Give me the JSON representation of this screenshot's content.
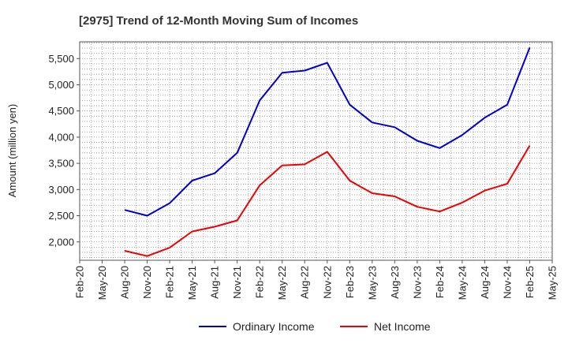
{
  "chart_data": {
    "type": "line",
    "title": "[2975]  Trend of 12-Month Moving Sum of Incomes",
    "xlabel": "",
    "ylabel": "Amount (million yen)",
    "categories": [
      "Feb-20",
      "May-20",
      "Aug-20",
      "Nov-20",
      "Feb-21",
      "May-21",
      "Aug-21",
      "Nov-21",
      "Feb-22",
      "May-22",
      "Aug-22",
      "Nov-22",
      "Feb-23",
      "May-23",
      "Aug-23",
      "Nov-23",
      "Feb-24",
      "May-24",
      "Aug-24",
      "Nov-24",
      "Feb-25",
      "May-25"
    ],
    "y_ticks": [
      2000,
      2500,
      3000,
      3500,
      4000,
      4500,
      5000,
      5500
    ],
    "y_tick_labels": [
      "2,000",
      "2,500",
      "3,000",
      "3,500",
      "4,000",
      "4,500",
      "5,000",
      "5,500"
    ],
    "ylim": [
      1650,
      5820
    ],
    "grid": true,
    "legend_position": "bottom",
    "series": [
      {
        "name": "Ordinary Income",
        "color": "#0000cc",
        "values": [
          null,
          null,
          2610,
          2500,
          2740,
          3170,
          3310,
          3700,
          4700,
          5230,
          5270,
          5420,
          4620,
          4280,
          4190,
          3930,
          3790,
          4040,
          4370,
          4620,
          5710,
          null
        ]
      },
      {
        "name": "Net Income",
        "color": "#ee0000",
        "values": [
          null,
          null,
          1830,
          1730,
          1890,
          2200,
          2290,
          2410,
          3080,
          3460,
          3480,
          3720,
          3170,
          2930,
          2870,
          2670,
          2580,
          2750,
          2980,
          3110,
          3840,
          null
        ]
      }
    ]
  }
}
